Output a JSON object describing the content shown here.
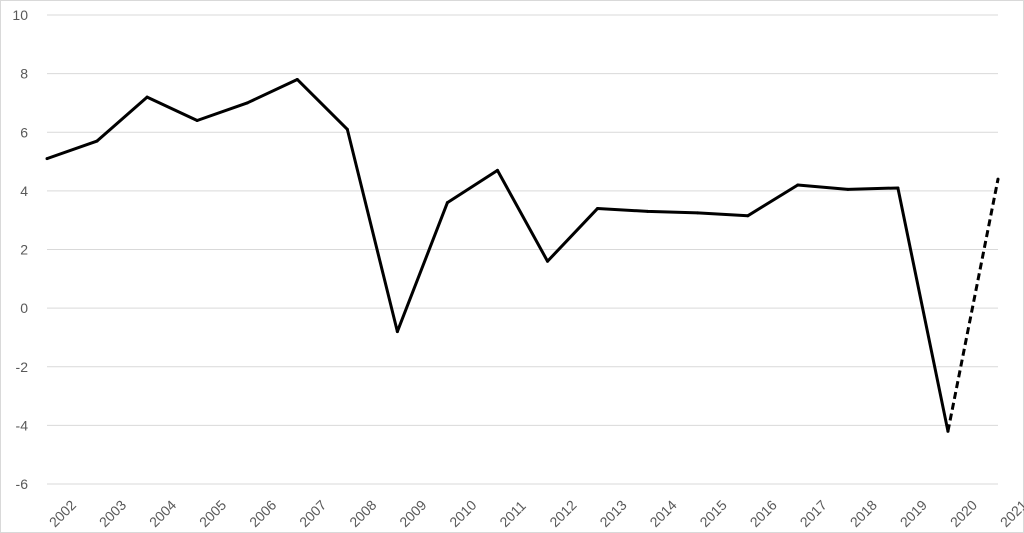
{
  "chart_data": {
    "type": "line",
    "title": "",
    "xlabel": "",
    "ylabel": "",
    "ylim": [
      -6,
      10
    ],
    "yticks": [
      -6,
      -4,
      -2,
      0,
      2,
      4,
      6,
      8,
      10
    ],
    "grid": true,
    "legend": "none",
    "categories": [
      "2002",
      "2003",
      "2004",
      "2005",
      "2006",
      "2007",
      "2008",
      "2009",
      "2010",
      "2011",
      "2012",
      "2013",
      "2014",
      "2015",
      "2016",
      "2017",
      "2018",
      "2019",
      "2020",
      "2021"
    ],
    "series": [
      {
        "style": "solid",
        "color": "#000000",
        "x": [
          "2002",
          "2003",
          "2004",
          "2005",
          "2006",
          "2007",
          "2008",
          "2009",
          "2010",
          "2011",
          "2012",
          "2013",
          "2014",
          "2015",
          "2016",
          "2017",
          "2018",
          "2019",
          "2020"
        ],
        "values": [
          5.1,
          5.7,
          7.2,
          6.4,
          7.0,
          7.8,
          6.1,
          -0.8,
          3.6,
          4.7,
          1.6,
          3.4,
          3.3,
          3.25,
          3.15,
          4.2,
          4.05,
          4.1,
          -4.2
        ]
      },
      {
        "style": "dashed",
        "color": "#000000",
        "x": [
          "2020",
          "2021"
        ],
        "values": [
          -4.2,
          4.4
        ]
      }
    ]
  }
}
